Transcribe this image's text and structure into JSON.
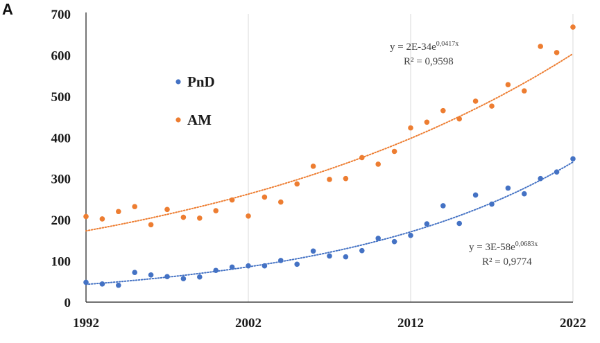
{
  "panel_label": "A",
  "chart_data": {
    "type": "scatter",
    "xlim": [
      1992,
      2022
    ],
    "ylim": [
      0,
      700
    ],
    "x_ticks": [
      "1992",
      "2002",
      "2012",
      "2022"
    ],
    "y_ticks": [
      "0",
      "100",
      "200",
      "300",
      "400",
      "500",
      "600",
      "700"
    ],
    "grid": "vertical",
    "legend_position": "upper-left",
    "x": [
      1992,
      1993,
      1994,
      1995,
      1996,
      1997,
      1998,
      1999,
      2000,
      2001,
      2002,
      2003,
      2004,
      2005,
      2006,
      2007,
      2008,
      2009,
      2010,
      2011,
      2012,
      2013,
      2014,
      2015,
      2016,
      2017,
      2018,
      2019,
      2020,
      2021,
      2022
    ],
    "series": [
      {
        "name": "PnD",
        "color": "#4472c4",
        "values": [
          48,
          44,
          41,
          72,
          66,
          62,
          57,
          61,
          77,
          85,
          88,
          88,
          101,
          92,
          124,
          112,
          110,
          125,
          155,
          147,
          162,
          190,
          234,
          191,
          260,
          238,
          277,
          263,
          300,
          316,
          348
        ],
        "trendline": {
          "type": "exponential",
          "equation": "y = 3E-58e",
          "exponent": "0,0683x",
          "r2": "R² = 0,9774",
          "start": 43,
          "end": 340
        }
      },
      {
        "name": "AM",
        "color": "#ed7d31",
        "values": [
          208,
          202,
          220,
          232,
          188,
          225,
          206,
          204,
          222,
          248,
          209,
          255,
          243,
          287,
          330,
          298,
          300,
          351,
          335,
          366,
          423,
          437,
          465,
          445,
          488,
          476,
          528,
          513,
          621,
          606,
          668
        ],
        "trendline": {
          "type": "exponential",
          "equation": "y = 2E-34e",
          "exponent": "0,0417x",
          "r2": "R² = 0,9598",
          "start": 173,
          "end": 603
        }
      }
    ]
  }
}
